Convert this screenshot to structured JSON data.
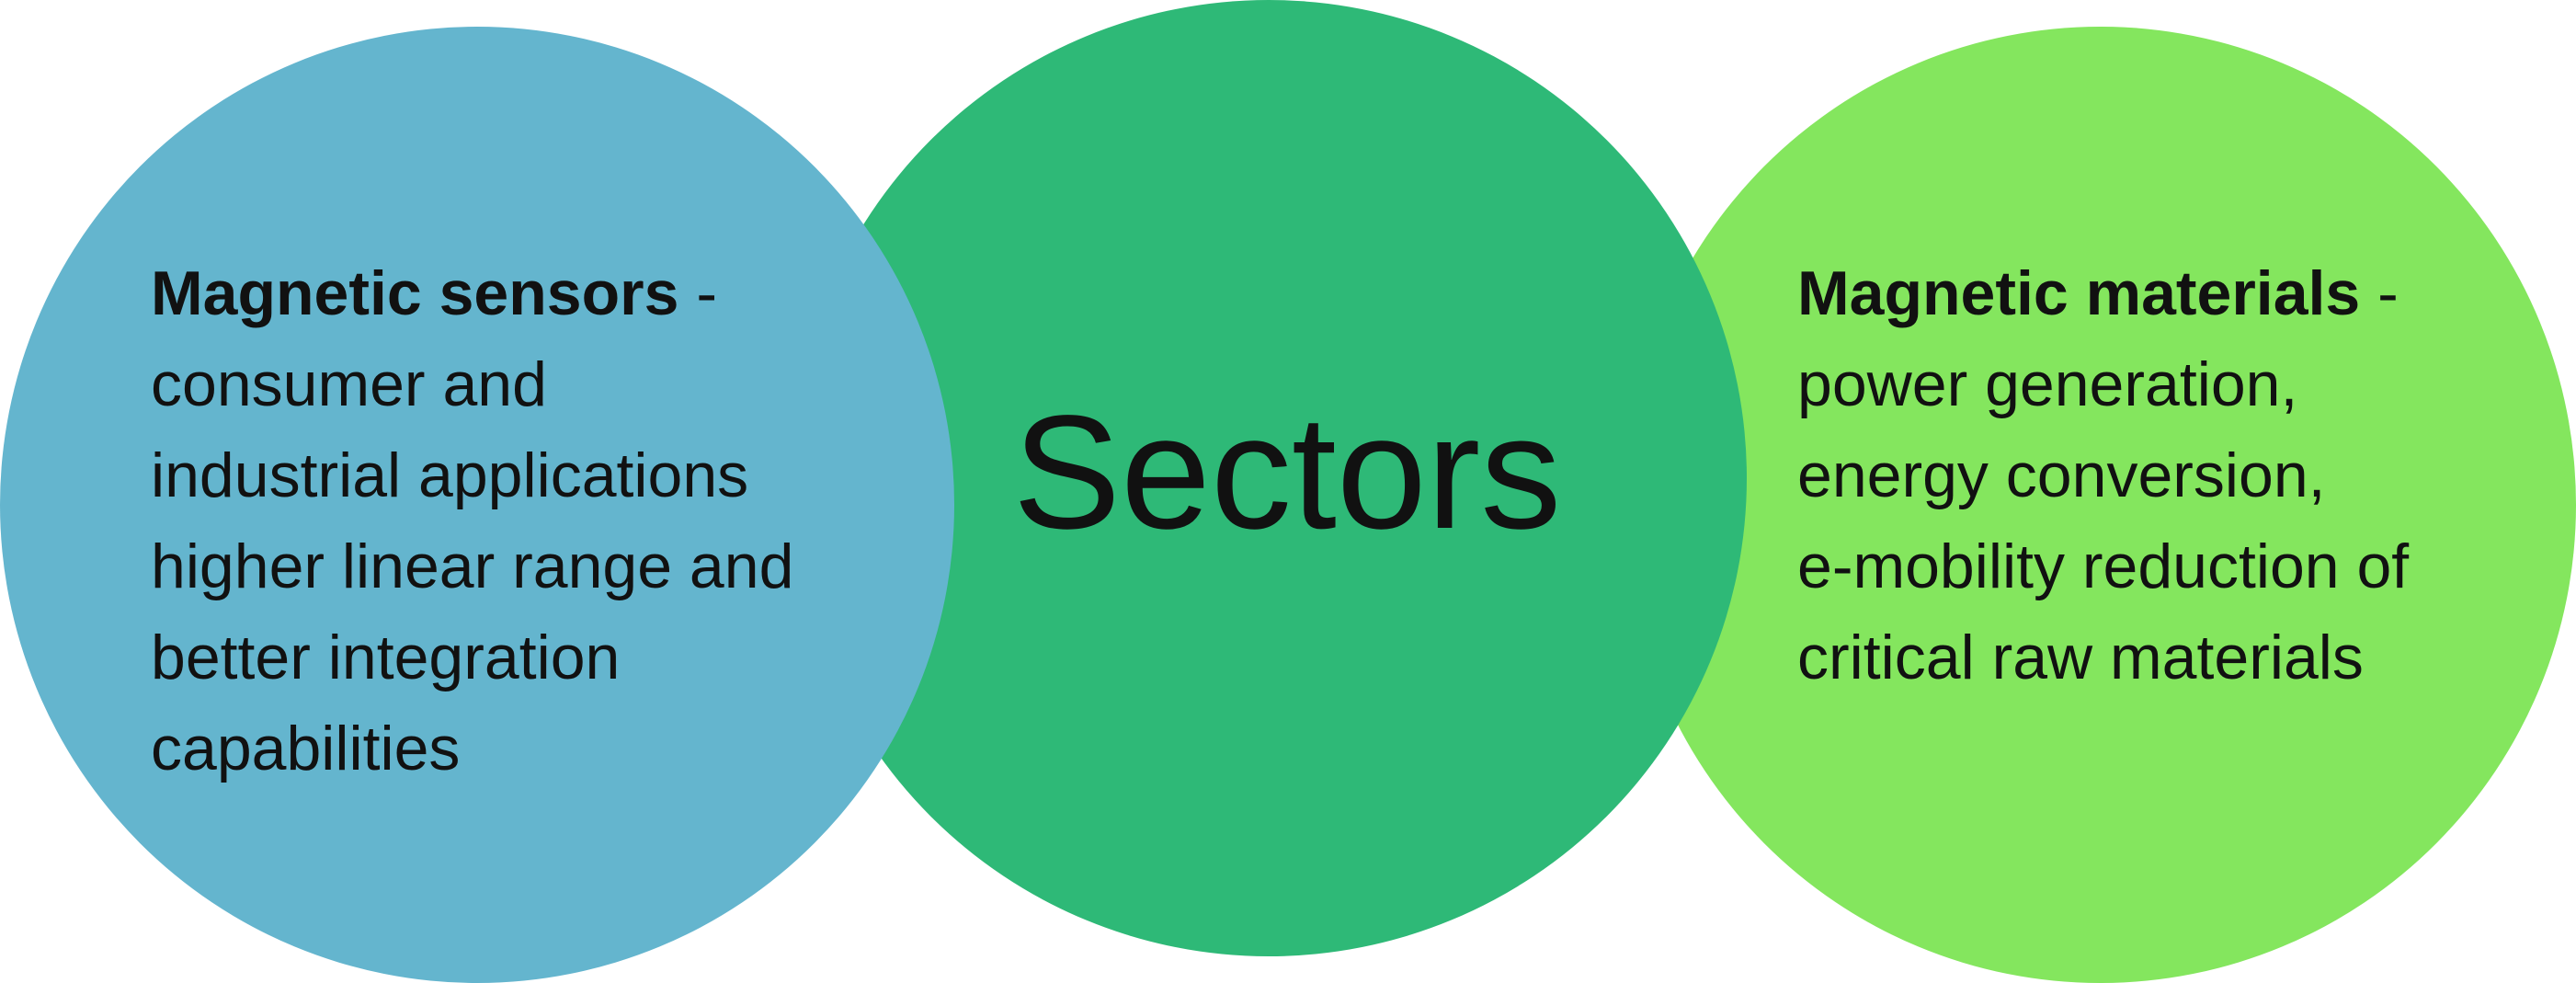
{
  "diagram": {
    "center": {
      "label": "Sectors",
      "color": "#2eb977"
    },
    "left": {
      "heading": "Magnetic sensors",
      "separator": " -",
      "lines": [
        "consumer and",
        "industrial applications",
        "higher linear range and",
        "better integration",
        "capabilities"
      ],
      "color": "#64b5ce"
    },
    "right": {
      "heading": "Magnetic materials",
      "separator": " -",
      "lines": [
        "power generation,",
        "energy conversion,",
        "e-mobility reduction of",
        "critical raw materials"
      ],
      "color": "#84e65e"
    }
  }
}
